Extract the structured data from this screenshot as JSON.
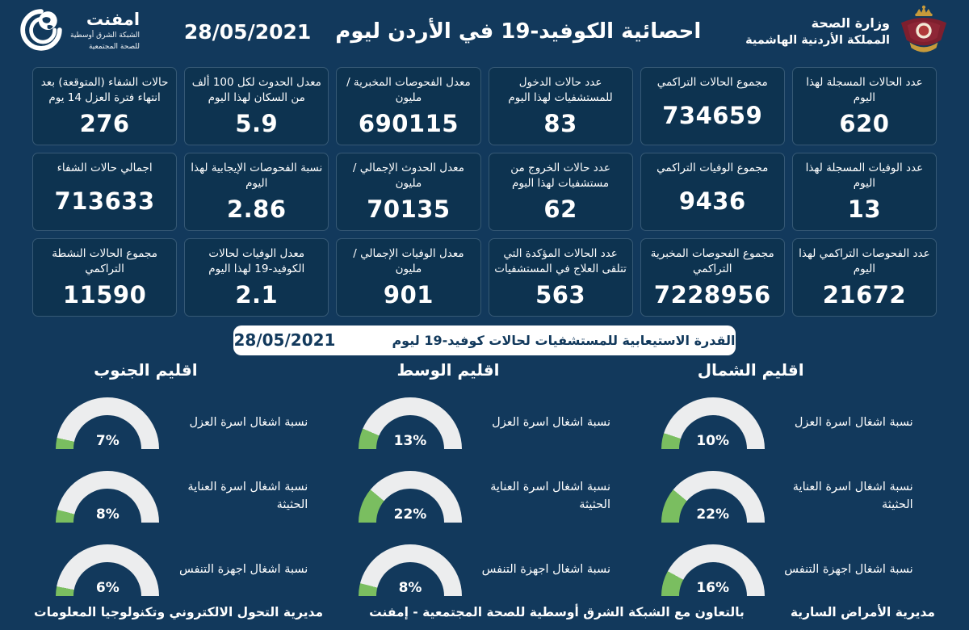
{
  "theme": {
    "background": "#12395C",
    "card_background": "#0D3350",
    "gauge_fill": "#7ABE60",
    "gauge_track": "#ECEDEE",
    "banner_background": "#FFFFFF",
    "banner_text": "#12395C",
    "text": "#FFFFFF"
  },
  "header": {
    "logo": {
      "title": "امفنت",
      "subtitle1": "الشبكة الشرق أوسطية",
      "subtitle2": "للصحة المجتمعية"
    },
    "title": "احصائية الكوفيد-19 في الأردن ليوم",
    "date": "28/05/2021",
    "ministry": {
      "line1": "وزارة الصحة",
      "line2": "المملكة الأردنية الهاشمية"
    }
  },
  "stats": {
    "cards": [
      {
        "label": "عدد الحالات المسجلة لهذا اليوم",
        "value": "620"
      },
      {
        "label": "مجموع الحالات التراكمي",
        "value": "734659"
      },
      {
        "label": "عدد حالات الدخول للمستشفيات لهذا اليوم",
        "value": "83"
      },
      {
        "label": "معدل الفحوصات المخبرية /مليون",
        "value": "690115"
      },
      {
        "label": "معدل الحدوث لكل 100 ألف من السكان لهذا اليوم",
        "value": "5.9"
      },
      {
        "label": "حالات الشفاء (المتوقعة) بعد انتهاء فترة العزل 14 يوم",
        "value": "276"
      },
      {
        "label": "عدد الوفيات المسجلة لهذا اليوم",
        "value": "13"
      },
      {
        "label": "مجموع الوفيات التراكمي",
        "value": "9436"
      },
      {
        "label": "عدد حالات الخروج من مستشفيات لهذا اليوم",
        "value": "62"
      },
      {
        "label": "معدل الحدوث الإجمالي /مليون",
        "value": "70135"
      },
      {
        "label": "نسبة الفحوصات الإيجابية لهذا اليوم",
        "value": "2.86"
      },
      {
        "label": "اجمالي حالات الشفاء",
        "value": "713633"
      },
      {
        "label": "عدد الفحوصات التراكمي لهذا اليوم",
        "value": "21672"
      },
      {
        "label": "مجموع الفحوصات المخبرية التراكمي",
        "value": "7228956"
      },
      {
        "label": "عدد الحالات المؤكدة التي تتلقى العلاج في المستشفيات",
        "value": "563"
      },
      {
        "label": "معدل الوفيات الإجمالي /مليون",
        "value": "901"
      },
      {
        "label": "معدل الوفيات لحالات الكوفيد-19 لهذا اليوم",
        "value": "2.1"
      },
      {
        "label": "مجموع الحالات النشطة التراكمي",
        "value": "11590"
      }
    ]
  },
  "capacity_banner": {
    "label": "القدرة الاستيعابية للمستشفيات لحالات كوفيد-19 ليوم",
    "date": "28/05/2021"
  },
  "chart_data": {
    "type": "gauge",
    "title": "القدرة الاستيعابية للمستشفيات لحالات كوفيد-19 ليوم 28/05/2021",
    "unit": "%",
    "range": [
      0,
      100
    ],
    "categories": [
      "نسبة اشغال اسرة العزل",
      "نسبة اشغال اسرة العناية الحثيثة",
      "نسبة اشغال اجهزة التنفس"
    ],
    "series": [
      {
        "name": "اقليم الشمال",
        "values": [
          10,
          22,
          16
        ]
      },
      {
        "name": "اقليم الوسط",
        "values": [
          13,
          22,
          8
        ]
      },
      {
        "name": "اقليم الجنوب",
        "values": [
          7,
          8,
          6
        ]
      }
    ],
    "fill_color": "#7ABE60",
    "track_color": "#ECEDEE"
  },
  "footer": {
    "right": "مديرية الأمراض السارية",
    "center": "بالتعاون مع الشبكة الشرق أوسطية للصحة المجتمعية - إمفنت",
    "left": "مديرية التحول الالكتروني وتكنولوجيا المعلومات"
  }
}
